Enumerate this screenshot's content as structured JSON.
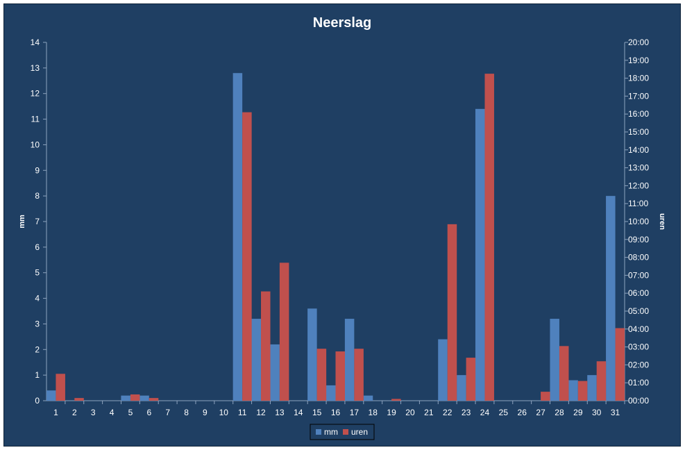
{
  "chart_data": {
    "type": "bar",
    "title": "Neerslag",
    "categories": [
      "1",
      "2",
      "3",
      "4",
      "5",
      "6",
      "7",
      "8",
      "9",
      "10",
      "11",
      "12",
      "13",
      "14",
      "15",
      "16",
      "17",
      "18",
      "19",
      "20",
      "21",
      "22",
      "23",
      "24",
      "25",
      "26",
      "27",
      "28",
      "29",
      "30",
      "31"
    ],
    "y_left": {
      "label": "mm",
      "range": [
        0,
        14
      ],
      "ticks": [
        "0",
        "1",
        "2",
        "3",
        "4",
        "5",
        "6",
        "7",
        "8",
        "9",
        "10",
        "11",
        "12",
        "13",
        "14"
      ]
    },
    "y_right": {
      "label": "uren",
      "range_hours": [
        0,
        20
      ],
      "ticks": [
        "00:00",
        "01:00",
        "02:00",
        "03:00",
        "04:00",
        "05:00",
        "06:00",
        "07:00",
        "08:00",
        "09:00",
        "10:00",
        "11:00",
        "12:00",
        "13:00",
        "14:00",
        "15:00",
        "16:00",
        "17:00",
        "18:00",
        "19:00",
        "20:00"
      ]
    },
    "series": [
      {
        "name": "mm",
        "axis": "left",
        "color": "#4f81bd",
        "values": [
          0.4,
          0,
          0,
          0,
          0.2,
          0.2,
          0,
          0,
          0,
          0,
          12.8,
          3.2,
          2.2,
          0,
          3.6,
          0.6,
          3.2,
          0.2,
          0,
          0,
          0,
          2.4,
          1.0,
          11.4,
          0,
          0,
          0,
          3.2,
          0.8,
          1.0,
          8.0
        ]
      },
      {
        "name": "uren",
        "axis": "right",
        "color": "#c0504d",
        "values_hours": [
          1.5,
          0.15,
          0,
          0,
          0.35,
          0.15,
          0,
          0,
          0,
          0,
          16.1,
          6.1,
          7.7,
          0,
          2.9,
          2.75,
          2.9,
          0,
          0.1,
          0,
          0,
          9.85,
          2.4,
          18.25,
          0,
          0,
          0.5,
          3.05,
          1.1,
          2.2,
          4.05
        ]
      }
    ],
    "legend": "bottom",
    "grid": false
  }
}
